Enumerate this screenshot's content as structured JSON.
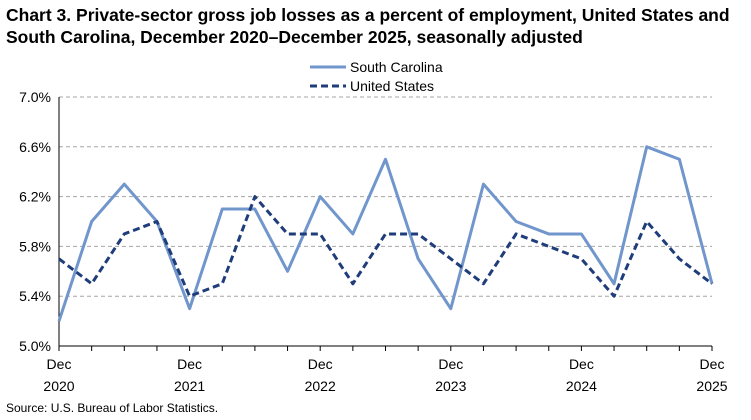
{
  "title": "Chart 3. Private-sector gross job losses as a percent of employment, United States and South Carolina, December 2020–December 2025, seasonally adjusted",
  "source": "Source: U.S. Bureau of Labor Statistics.",
  "chart_data": {
    "type": "line",
    "x": [
      "Dec 2020",
      "Mar 2021",
      "Jun 2021",
      "Sep 2021",
      "Dec 2021",
      "Mar 2022",
      "Jun 2022",
      "Sep 2022",
      "Dec 2022",
      "Mar 2023",
      "Jun 2023",
      "Sep 2023",
      "Dec 2023",
      "Mar 2024",
      "Jun 2024",
      "Sep 2024",
      "Dec 2024",
      "Mar 2025",
      "Jun 2025",
      "Sep 2025",
      "Dec 2025"
    ],
    "x_ticks": [
      {
        "index": 0,
        "month": "Dec",
        "year": "2020"
      },
      {
        "index": 4,
        "month": "Dec",
        "year": "2021"
      },
      {
        "index": 8,
        "month": "Dec",
        "year": "2022"
      },
      {
        "index": 12,
        "month": "Dec",
        "year": "2023"
      },
      {
        "index": 16,
        "month": "Dec",
        "year": "2024"
      },
      {
        "index": 20,
        "month": "Dec",
        "year": "2025"
      }
    ],
    "y_ticks": [
      "5.0%",
      "5.4%",
      "5.8%",
      "6.2%",
      "6.6%",
      "7.0%"
    ],
    "ylim": [
      5.0,
      7.0
    ],
    "series": [
      {
        "name": "South Carolina",
        "color": "#7096cc",
        "style": "solid",
        "values": [
          5.2,
          6.0,
          6.3,
          6.0,
          5.3,
          6.1,
          6.1,
          5.6,
          6.2,
          5.9,
          6.5,
          5.7,
          5.3,
          6.3,
          6.0,
          5.9,
          5.9,
          5.5,
          6.6,
          6.5,
          5.5
        ]
      },
      {
        "name": "United States",
        "color": "#1f3d7a",
        "style": "dashed",
        "values": [
          5.7,
          5.5,
          5.9,
          6.0,
          5.4,
          5.5,
          6.2,
          5.9,
          5.9,
          5.5,
          5.9,
          5.9,
          5.7,
          5.5,
          5.9,
          5.8,
          5.7,
          5.4,
          6.0,
          5.7,
          5.5
        ]
      }
    ],
    "grid": true,
    "legend_position": "top-center"
  }
}
